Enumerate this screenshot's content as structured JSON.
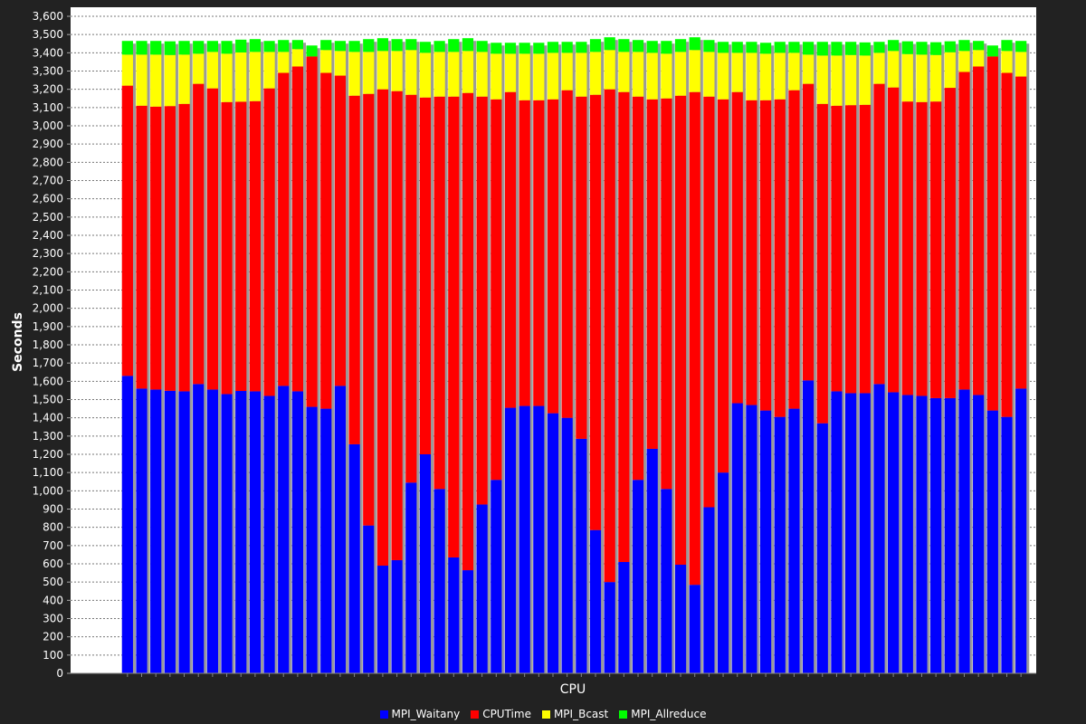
{
  "chart_data": {
    "type": "bar",
    "stacked": true,
    "title": "",
    "xlabel": "CPU",
    "ylabel": "Seconds",
    "ylim": [
      0,
      3600
    ],
    "ytick_step": 100,
    "grid": true,
    "legend_position": "bottom",
    "background": "#222222",
    "plot_background": "#ffffff",
    "series": [
      {
        "name": "MPI_Waitany",
        "color": "#0000ff",
        "values": [
          1630,
          1560,
          1555,
          1548,
          1545,
          1585,
          1555,
          1530,
          1547,
          1545,
          1520,
          1575,
          1545,
          1460,
          1450,
          1575,
          1255,
          810,
          590,
          620,
          1045,
          1200,
          1010,
          635,
          565,
          925,
          1060,
          1455,
          1465,
          1465,
          1425,
          1400,
          1285,
          785,
          500,
          610,
          1060,
          1230,
          1010,
          595,
          485,
          910,
          1100,
          1480,
          1470,
          1440,
          1405,
          1450,
          1605,
          1370,
          1545,
          1535,
          1535,
          1585,
          1540,
          1525,
          1520,
          1508,
          1508,
          1555,
          1525,
          1440,
          1405,
          1560
        ]
      },
      {
        "name": "CPUTime",
        "color": "#ff0000",
        "values": [
          1590,
          1550,
          1550,
          1560,
          1575,
          1645,
          1650,
          1600,
          1585,
          1590,
          1685,
          1715,
          1780,
          1920,
          1840,
          1700,
          1910,
          2365,
          2610,
          2570,
          2125,
          1955,
          2150,
          2525,
          2615,
          2235,
          2085,
          1730,
          1675,
          1675,
          1720,
          1795,
          1875,
          2385,
          2700,
          2575,
          2100,
          1915,
          2140,
          2570,
          2700,
          2250,
          2045,
          1705,
          1670,
          1700,
          1740,
          1745,
          1625,
          1750,
          1565,
          1578,
          1580,
          1645,
          1670,
          1608,
          1610,
          1625,
          1700,
          1740,
          1800,
          1940,
          1885,
          1710
        ]
      },
      {
        "name": "MPI_Bcast",
        "color": "#ffff00",
        "values": [
          170,
          280,
          285,
          280,
          270,
          165,
          200,
          265,
          270,
          270,
          200,
          115,
          95,
          0,
          125,
          135,
          240,
          230,
          210,
          220,
          245,
          245,
          245,
          245,
          230,
          245,
          250,
          210,
          255,
          255,
          255,
          205,
          240,
          235,
          215,
          220,
          245,
          255,
          245,
          240,
          230,
          245,
          255,
          215,
          260,
          255,
          255,
          205,
          160,
          265,
          275,
          275,
          270,
          170,
          200,
          260,
          260,
          255,
          195,
          115,
          90,
          0,
          120,
          135
        ]
      },
      {
        "name": "MPI_Allreduce",
        "color": "#00ff00",
        "values": [
          75,
          75,
          75,
          75,
          75,
          70,
          60,
          70,
          70,
          70,
          60,
          65,
          50,
          60,
          55,
          55,
          60,
          70,
          70,
          65,
          60,
          60,
          60,
          70,
          70,
          60,
          60,
          60,
          60,
          60,
          60,
          60,
          60,
          70,
          70,
          70,
          65,
          65,
          70,
          70,
          70,
          65,
          60,
          60,
          60,
          60,
          60,
          60,
          70,
          75,
          75,
          72,
          72,
          60,
          60,
          70,
          70,
          70,
          60,
          60,
          50,
          60,
          60,
          60
        ]
      }
    ]
  },
  "legend": {
    "items": [
      {
        "label": "MPI_Waitany",
        "color": "#0000ff"
      },
      {
        "label": "CPUTime",
        "color": "#ff0000"
      },
      {
        "label": "MPI_Bcast",
        "color": "#ffff00"
      },
      {
        "label": "MPI_Allreduce",
        "color": "#00ff00"
      }
    ]
  }
}
